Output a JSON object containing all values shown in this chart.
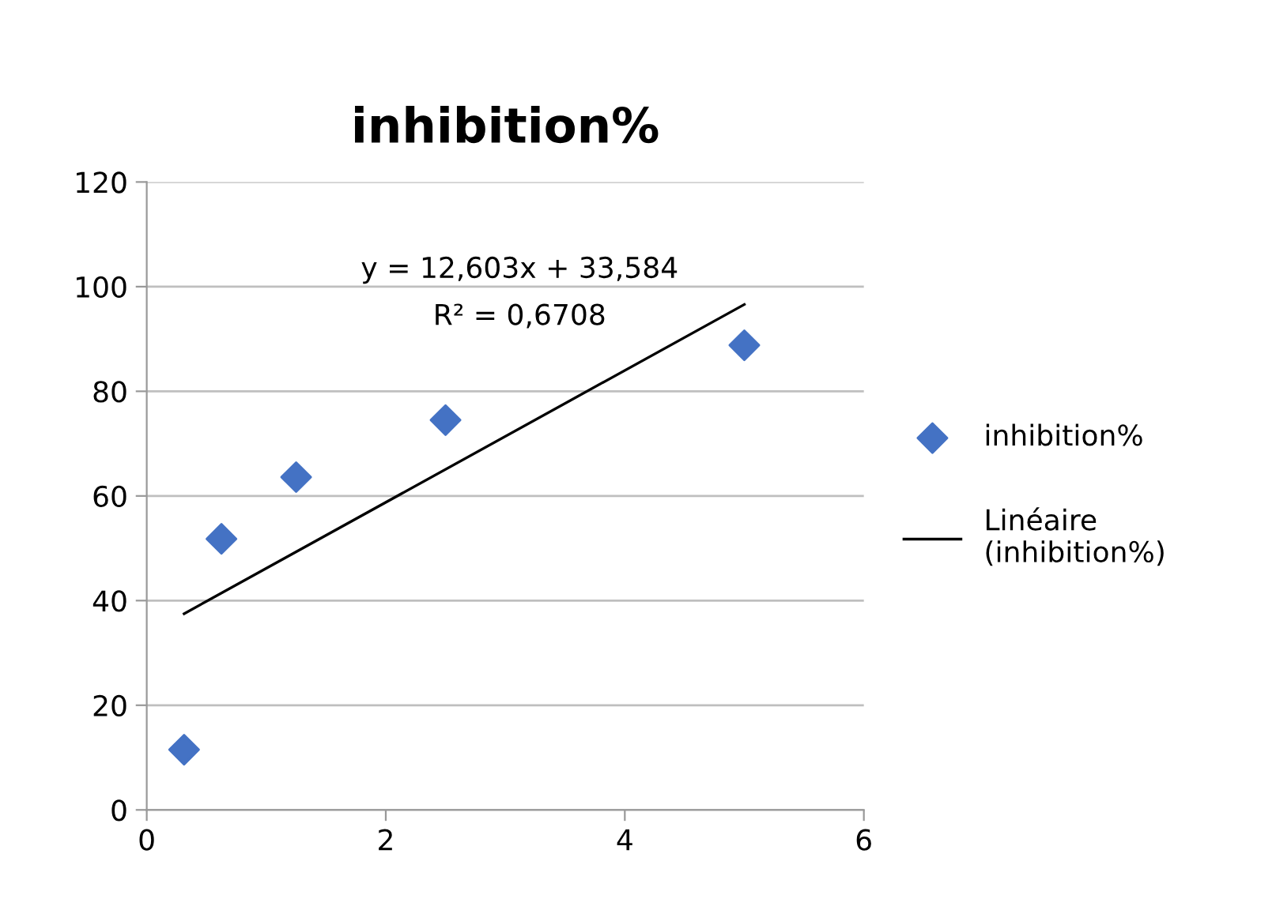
{
  "chart_data": {
    "type": "scatter",
    "title": "inhibition%",
    "series": [
      {
        "name": "inhibition%",
        "color": "#4472c4",
        "marker": "diamond",
        "x": [
          0.3125,
          0.625,
          1.25,
          2.5,
          5
        ],
        "values": [
          11.5,
          51.8,
          63.6,
          74.5,
          88.8
        ]
      },
      {
        "name": "Linéaire (inhibition%)",
        "type": "line",
        "color": "#000000",
        "marker": "none",
        "line_style": "solid",
        "x": [
          0.3125,
          5
        ],
        "values": [
          37.5,
          96.6
        ]
      }
    ],
    "annotations": [
      "y = 12,603x + 33,584",
      "R² = 0,6708"
    ],
    "xlim": [
      0,
      6
    ],
    "xticks": [
      0,
      2,
      4,
      6
    ],
    "ylim": [
      0,
      120
    ],
    "yticks": [
      0,
      20,
      40,
      60,
      80,
      100,
      120
    ],
    "grid": "y",
    "legend": "right"
  }
}
